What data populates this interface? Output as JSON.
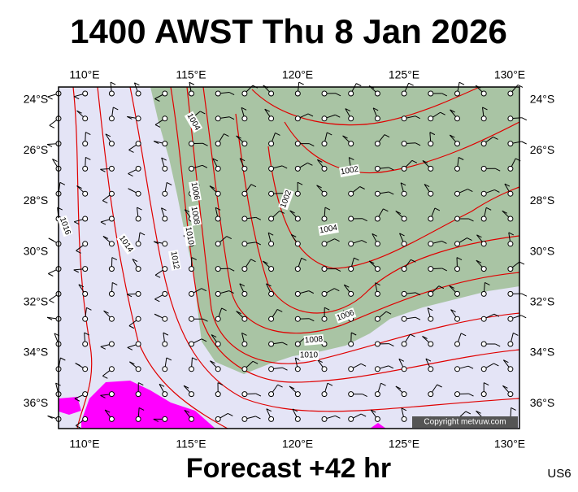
{
  "header": {
    "title": "1400 AWST Thu 8 Jan 2026"
  },
  "footer": {
    "forecast": "Forecast +42 hr",
    "code": "US6"
  },
  "map": {
    "lon_labels": [
      "110°E",
      "115°E",
      "120°E",
      "125°E",
      "130°E"
    ],
    "lat_labels": [
      "24°S",
      "26°S",
      "28°S",
      "30°S",
      "32°S",
      "34°S",
      "36°S"
    ],
    "isobar_labels": [
      "1004",
      "1002",
      "1006",
      "1008",
      "1002",
      "1004",
      "1010",
      "1012",
      "1014",
      "1016",
      "1006",
      "1008",
      "1010"
    ],
    "copyright": "Copyright metvuw.com"
  }
}
